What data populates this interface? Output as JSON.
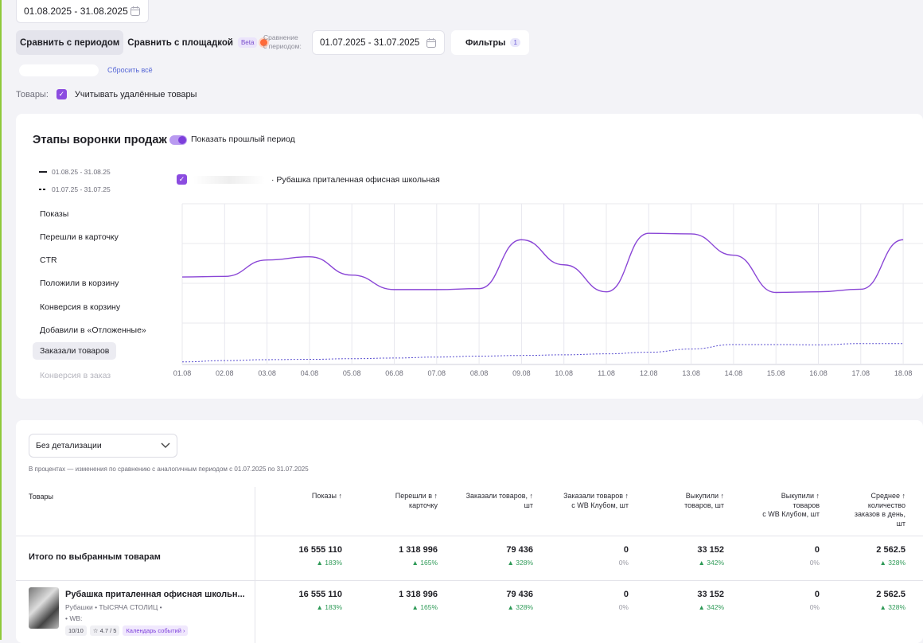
{
  "filters_bar": {
    "main_period": "01.08.2025 - 31.08.2025",
    "compare_period_button": "Сравнить с периодом",
    "compare_platform_button": "Сравнить с площадкой",
    "beta_badge": "Beta",
    "compare_label": "Сравнение\nс периодом:",
    "compare_period": "01.07.2025 - 31.07.2025",
    "filters_button": "Фильтры",
    "filters_count": "1",
    "reset_all": "Сбросить всё",
    "goods_label": "Товары:",
    "deleted_goods_checkbox": "Учитывать удалённые товары"
  },
  "funnel": {
    "title": "Этапы воронки продаж",
    "show_previous_toggle": "Показать прошлый период",
    "legend_current": "01.08.25 - 31.08.25",
    "legend_previous": "01.07.25 - 31.07.25",
    "product_legend": "· Рубашка приталенная офисная школьная",
    "metrics": [
      "Показы",
      "Перешли в карточку",
      "CTR",
      "Положили в корзину",
      "Конверсия в корзину",
      "Добавили в «Отложенные»",
      "Заказали товаров",
      "Конверсия в заказ"
    ],
    "active_metric": "Заказали товаров"
  },
  "chart_data": {
    "type": "line",
    "x": [
      "01.08",
      "02.08",
      "03.08",
      "04.08",
      "05.08",
      "06.08",
      "07.08",
      "08.08",
      "09.08",
      "10.08",
      "11.08",
      "12.08",
      "13.08",
      "14.08",
      "15.08",
      "16.08",
      "17.08",
      "18.08"
    ],
    "series": [
      {
        "values": [
          2720,
          2740,
          3250,
          3350,
          2780,
          2330,
          2330,
          2360,
          3880,
          3100,
          2260,
          4080,
          4060,
          3400,
          2240,
          2260,
          2340,
          3880
        ]
      },
      {
        "values": [
          80,
          120,
          150,
          160,
          180,
          200,
          230,
          260,
          280,
          300,
          330,
          380,
          480,
          620,
          620,
          610,
          650,
          650
        ]
      }
    ],
    "ylim": [
      0,
      5000
    ],
    "colors": [
      "#8a46d6",
      "#5a4fd0"
    ],
    "grid": true
  },
  "table": {
    "detail_select": "Без детализации",
    "note": "В процентах — изменения по сравнению с аналогичным периодом с 01.07.2025 по 31.07.2025",
    "goods_header": "Товары",
    "columns": [
      "Показы ↑",
      "Перешли в ↑\nкарточку",
      "Заказали товаров, ↑\nшт",
      "Заказали товаров ↑\nс WB Клубом, шт",
      "Выкупили ↑\nтоваров, шт",
      "Выкупили ↑\nтоваров\nс WB Клубом, шт",
      "Среднее ↑\nколичество\nзаказов в день,\nшт"
    ],
    "total_label": "Итого по выбранным товарам",
    "total_values": [
      "16 555 110",
      "1 318 996",
      "79 436",
      "0",
      "33 152",
      "0",
      "2 562.5"
    ],
    "total_pcts": [
      "▲ 183%",
      "▲ 165%",
      "▲ 328%",
      "0%",
      "▲ 342%",
      "0%",
      "▲ 328%"
    ],
    "product_name": "Рубашка приталенная офисная школьн...",
    "product_meta": "Рубашки • ТЫСЯЧА СТОЛИЦ •",
    "product_wb": "• WB:",
    "product_tags": [
      "10/10",
      "☆ 4.7 / 5",
      "Календарь событий ›"
    ],
    "product_values": [
      "16 555 110",
      "1 318 996",
      "79 436",
      "0",
      "33 152",
      "0",
      "2 562.5"
    ],
    "product_pcts": [
      "▲ 183%",
      "▲ 165%",
      "▲ 328%",
      "0%",
      "▲ 342%",
      "0%",
      "▲ 328%"
    ]
  }
}
